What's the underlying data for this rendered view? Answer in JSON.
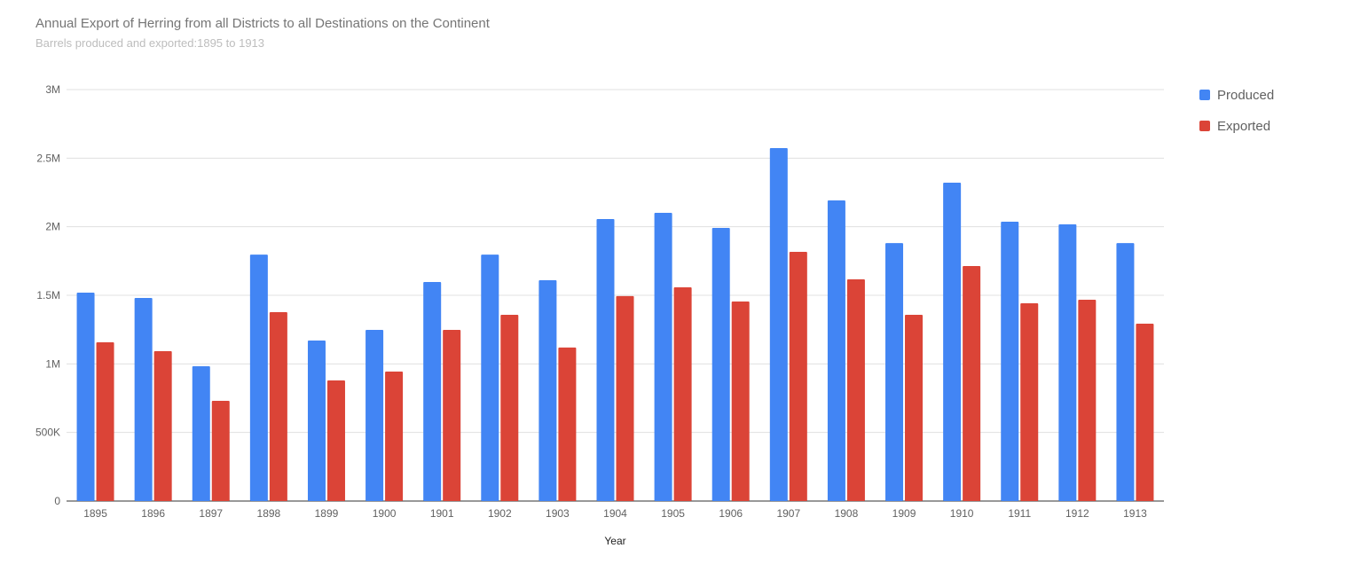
{
  "chart_data": {
    "type": "bar",
    "title": "Annual Export of Herring from all Districts to all Destinations on the Continent",
    "subtitle": "Barrels produced and exported:1895 to 1913",
    "xlabel": "Year",
    "ylabel": "",
    "ylim": [
      0,
      3000000
    ],
    "yticks": [
      0,
      500000,
      1000000,
      1500000,
      2000000,
      2500000,
      3000000
    ],
    "ytick_labels": [
      "0",
      "500K",
      "1M",
      "1.5M",
      "2M",
      "2.5M",
      "3M"
    ],
    "grid": true,
    "legend": "right",
    "categories": [
      "1895",
      "1896",
      "1897",
      "1898",
      "1899",
      "1900",
      "1901",
      "1902",
      "1903",
      "1904",
      "1905",
      "1906",
      "1907",
      "1908",
      "1909",
      "1910",
      "1911",
      "1912",
      "1913"
    ],
    "series": [
      {
        "name": "Produced",
        "color": "#4285f4",
        "values": [
          1519000,
          1481000,
          983000,
          1797000,
          1170000,
          1248000,
          1597000,
          1797000,
          1610000,
          2056000,
          2101000,
          1991000,
          2573000,
          2192000,
          1881000,
          2321000,
          2037000,
          2017000,
          1881000
        ]
      },
      {
        "name": "Exported",
        "color": "#db4437",
        "values": [
          1157000,
          1093000,
          731000,
          1377000,
          879000,
          944000,
          1248000,
          1358000,
          1119000,
          1494000,
          1558000,
          1455000,
          1817000,
          1616000,
          1358000,
          1713000,
          1442000,
          1468000,
          1293000
        ]
      }
    ]
  }
}
